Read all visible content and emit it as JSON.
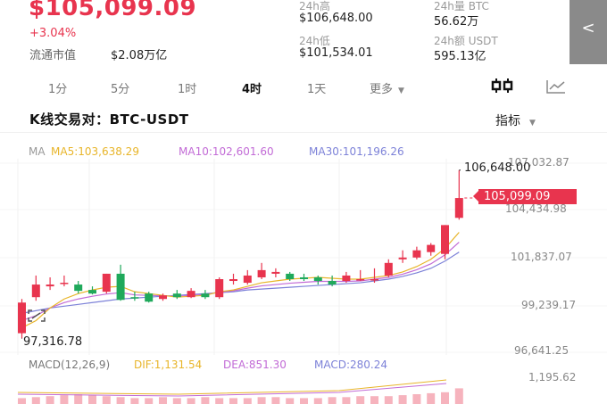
{
  "header": {
    "price": "$105,099.09",
    "change": "+3.04%",
    "mcap_label": "流通市值",
    "mcap_value": "$2.08万亿",
    "stats": [
      {
        "label": "24h高",
        "value": "$106,648.00"
      },
      {
        "label": "24h量 BTC",
        "value": "56.62万"
      },
      {
        "label": "24h低",
        "value": "$101,534.01"
      },
      {
        "label": "24h额 USDT",
        "value": "595.13亿"
      }
    ],
    "side_button": "<"
  },
  "tabs": [
    {
      "label": "1分"
    },
    {
      "label": "5分"
    },
    {
      "label": "1时"
    },
    {
      "label": "4时",
      "active": true
    },
    {
      "label": "1天"
    },
    {
      "label": "更多"
    }
  ],
  "toolbar": {
    "candle_icon": "candlestick-icon",
    "line_icon": "line-chart-icon"
  },
  "pair": {
    "label": "K线交易对：",
    "symbol": "BTC-USDT"
  },
  "indicator": {
    "label": "指标"
  },
  "ma": {
    "title": "MA",
    "ma5": "MA5:103,638.29",
    "ma10": "MA10:102,601.60",
    "ma30": "MA30:101,196.26",
    "colors": {
      "ma": "#999999",
      "ma5": "#e8b52a",
      "ma10": "#c26bd6",
      "ma30": "#7d82d8"
    }
  },
  "axis_labels": [
    "107,032.87",
    "104,434.98",
    "101,837.07",
    "99,239.17",
    "96,641.25"
  ],
  "markers": {
    "high": "106,648.00",
    "low": "97,316.78",
    "current": "105,099.09"
  },
  "macd": {
    "title": "MACD(12,26,9)",
    "dif": "DIF:1,131.54",
    "dea": "DEA:851.30",
    "macd": "MACD:280.24",
    "axis": "1,195.62"
  },
  "chart_data": {
    "type": "candlestick",
    "ylim": [
      96641.25,
      107032.87
    ],
    "up_color": "#e8344e",
    "down_color": "#1fa95b",
    "candles": [
      {
        "o": 97600,
        "c": 99300,
        "h": 99500,
        "l": 97317
      },
      {
        "o": 99600,
        "c": 100300,
        "h": 100800,
        "l": 99400
      },
      {
        "o": 100200,
        "c": 100300,
        "h": 100700,
        "l": 100000
      },
      {
        "o": 100400,
        "c": 100400,
        "h": 100800,
        "l": 100200
      },
      {
        "o": 100300,
        "c": 99950,
        "h": 100500,
        "l": 99800
      },
      {
        "o": 100000,
        "c": 99800,
        "h": 100200,
        "l": 99750
      },
      {
        "o": 99900,
        "c": 100900,
        "h": 100900,
        "l": 99800
      },
      {
        "o": 100900,
        "c": 99450,
        "h": 101400,
        "l": 99400
      },
      {
        "o": 99600,
        "c": 99550,
        "h": 99900,
        "l": 99400
      },
      {
        "o": 99800,
        "c": 99350,
        "h": 99900,
        "l": 99300
      },
      {
        "o": 99500,
        "c": 99700,
        "h": 99800,
        "l": 99400
      },
      {
        "o": 99800,
        "c": 99600,
        "h": 100000,
        "l": 99500
      },
      {
        "o": 99600,
        "c": 99950,
        "h": 100100,
        "l": 99550
      },
      {
        "o": 99800,
        "c": 99600,
        "h": 100000,
        "l": 99500
      },
      {
        "o": 99600,
        "c": 100600,
        "h": 100700,
        "l": 99500
      },
      {
        "o": 100500,
        "c": 100600,
        "h": 100900,
        "l": 100300
      },
      {
        "o": 100400,
        "c": 100800,
        "h": 101100,
        "l": 100300
      },
      {
        "o": 100700,
        "c": 101100,
        "h": 101500,
        "l": 100600
      },
      {
        "o": 100900,
        "c": 101000,
        "h": 101200,
        "l": 100700
      },
      {
        "o": 100900,
        "c": 100600,
        "h": 101000,
        "l": 100500
      },
      {
        "o": 100700,
        "c": 100600,
        "h": 100900,
        "l": 100500
      },
      {
        "o": 100700,
        "c": 100500,
        "h": 100800,
        "l": 100300
      },
      {
        "o": 100500,
        "c": 100300,
        "h": 100800,
        "l": 100200
      },
      {
        "o": 100500,
        "c": 100800,
        "h": 101000,
        "l": 100400
      },
      {
        "o": 100600,
        "c": 100600,
        "h": 101100,
        "l": 100500
      },
      {
        "o": 100600,
        "c": 100600,
        "h": 101200,
        "l": 100400
      },
      {
        "o": 100800,
        "c": 101500,
        "h": 101700,
        "l": 100700
      },
      {
        "o": 101700,
        "c": 101800,
        "h": 102200,
        "l": 101500
      },
      {
        "o": 101800,
        "c": 102200,
        "h": 102400,
        "l": 101700
      },
      {
        "o": 102100,
        "c": 102500,
        "h": 102600,
        "l": 101900
      },
      {
        "o": 102000,
        "c": 103600,
        "h": 103600,
        "l": 101700
      },
      {
        "o": 104000,
        "c": 105100,
        "h": 106648,
        "l": 103900
      }
    ],
    "ma5": [
      97900,
      98300,
      99000,
      99500,
      99800,
      100000,
      100150,
      100200,
      99900,
      99800,
      99700,
      99600,
      99650,
      99700,
      99900,
      100000,
      100200,
      100400,
      100500,
      100600,
      100650,
      100700,
      100650,
      100600,
      100600,
      100700,
      100800,
      101000,
      101300,
      101700,
      102300,
      103200
    ],
    "ma10": [
      98700,
      98850,
      99000,
      99100,
      99200,
      99300,
      99400,
      99500,
      99550,
      99600,
      99650,
      99700,
      99750,
      99800,
      99850,
      99900,
      100000,
      100050,
      100100,
      100150,
      100200,
      100250,
      100300,
      100350,
      100400,
      100500,
      100600,
      100750,
      100950,
      101200,
      101600,
      102100
    ]
  },
  "macd_bars": [
    0.3,
    0.35,
    0.4,
    0.45,
    0.5,
    0.45,
    0.4,
    0.35,
    0.3,
    0.3,
    0.35,
    0.3,
    0.3,
    0.35,
    0.3,
    0.3,
    0.3,
    0.35,
    0.35,
    0.3,
    0.3,
    0.3,
    0.35,
    0.35,
    0.4,
    0.4,
    0.4,
    0.45,
    0.5,
    0.55,
    0.6,
    0.8
  ]
}
